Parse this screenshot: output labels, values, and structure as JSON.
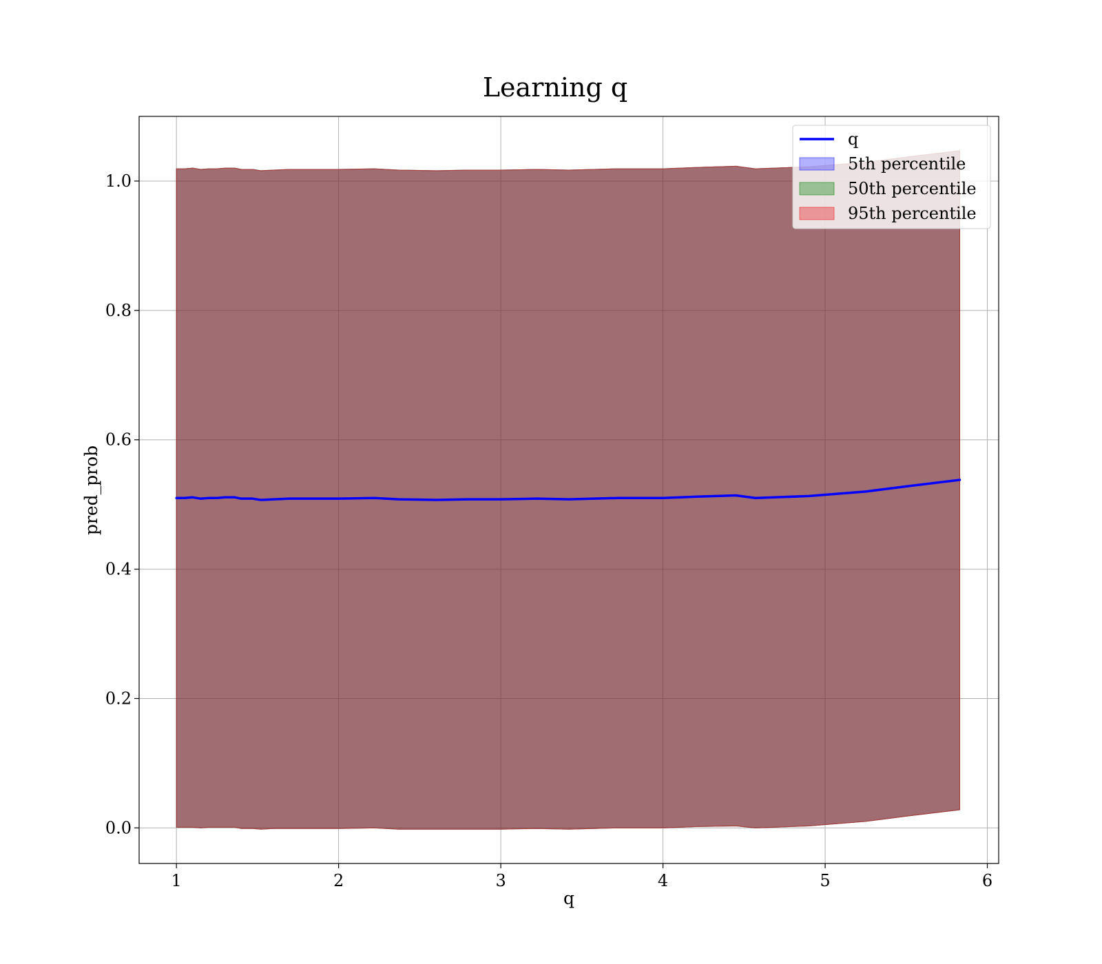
{
  "chart_data": {
    "type": "area",
    "title": "Learning q",
    "xlabel": "q",
    "ylabel": "pred_prob",
    "xlim": [
      0.77,
      6.07
    ],
    "ylim": [
      -0.055,
      1.1
    ],
    "xticks": [
      1,
      2,
      3,
      4,
      5,
      6
    ],
    "yticks": [
      0.0,
      0.2,
      0.4,
      0.6,
      0.8,
      1.0
    ],
    "xtick_labels": [
      "1",
      "2",
      "3",
      "4",
      "5",
      "6"
    ],
    "ytick_labels": [
      "0.0",
      "0.2",
      "0.4",
      "0.6",
      "0.8",
      "1.0"
    ],
    "grid": true,
    "legend_position": "top-right",
    "x": [
      1.0,
      1.05,
      1.1,
      1.15,
      1.2,
      1.25,
      1.3,
      1.36,
      1.4,
      1.47,
      1.52,
      1.6,
      1.7,
      1.8,
      1.9,
      2.0,
      2.22,
      2.37,
      2.6,
      2.8,
      3.0,
      3.22,
      3.42,
      3.72,
      4.0,
      4.2,
      4.45,
      4.57,
      4.9,
      5.25,
      5.5,
      5.83
    ],
    "series": [
      {
        "name": "q",
        "kind": "line",
        "color": "#0000ff",
        "values": [
          0.51,
          0.51,
          0.511,
          0.509,
          0.51,
          0.51,
          0.511,
          0.511,
          0.509,
          0.509,
          0.507,
          0.508,
          0.509,
          0.509,
          0.509,
          0.509,
          0.51,
          0.508,
          0.507,
          0.508,
          0.508,
          0.509,
          0.508,
          0.51,
          0.51,
          0.512,
          0.514,
          0.51,
          0.513,
          0.52,
          0.528,
          0.538
        ]
      },
      {
        "name": "5th percentile",
        "kind": "band",
        "color": "#0000ff",
        "opacity": 0.3,
        "lower": [
          0.001,
          0.001,
          0.001,
          0.0,
          0.001,
          0.001,
          0.001,
          0.001,
          -0.001,
          -0.001,
          -0.002,
          -0.001,
          -0.001,
          -0.001,
          -0.001,
          -0.001,
          0.0,
          -0.002,
          -0.002,
          -0.002,
          -0.002,
          -0.001,
          -0.002,
          0.0,
          0.0,
          0.002,
          0.003,
          0.0,
          0.003,
          0.01,
          0.018,
          0.028
        ],
        "upper": [
          1.019,
          1.019,
          1.02,
          1.018,
          1.019,
          1.019,
          1.02,
          1.02,
          1.018,
          1.018,
          1.016,
          1.017,
          1.018,
          1.018,
          1.018,
          1.018,
          1.019,
          1.017,
          1.016,
          1.017,
          1.017,
          1.018,
          1.017,
          1.019,
          1.019,
          1.021,
          1.023,
          1.019,
          1.022,
          1.029,
          1.037,
          1.047
        ]
      },
      {
        "name": "50th percentile",
        "kind": "band",
        "color": "#008000",
        "opacity": 0.35,
        "lower": [
          0.001,
          0.001,
          0.001,
          0.0,
          0.001,
          0.001,
          0.001,
          0.001,
          -0.001,
          -0.001,
          -0.002,
          -0.001,
          -0.001,
          -0.001,
          -0.001,
          -0.001,
          0.0,
          -0.002,
          -0.002,
          -0.002,
          -0.002,
          -0.001,
          -0.002,
          0.0,
          0.0,
          0.002,
          0.003,
          0.0,
          0.003,
          0.01,
          0.018,
          0.028
        ],
        "upper": [
          1.019,
          1.019,
          1.02,
          1.018,
          1.019,
          1.019,
          1.02,
          1.02,
          1.018,
          1.018,
          1.016,
          1.017,
          1.018,
          1.018,
          1.018,
          1.018,
          1.019,
          1.017,
          1.016,
          1.017,
          1.017,
          1.018,
          1.017,
          1.019,
          1.019,
          1.021,
          1.023,
          1.019,
          1.022,
          1.029,
          1.037,
          1.047
        ]
      },
      {
        "name": "95th percentile",
        "kind": "band",
        "color": "#e8191c",
        "opacity": 0.38,
        "lower": [
          0.001,
          0.001,
          0.001,
          0.0,
          0.001,
          0.001,
          0.001,
          0.001,
          -0.001,
          -0.001,
          -0.002,
          -0.001,
          -0.001,
          -0.001,
          -0.001,
          -0.001,
          0.0,
          -0.002,
          -0.002,
          -0.002,
          -0.002,
          -0.001,
          -0.002,
          0.0,
          0.0,
          0.002,
          0.003,
          0.0,
          0.003,
          0.01,
          0.018,
          0.028
        ],
        "upper": [
          1.019,
          1.019,
          1.02,
          1.018,
          1.019,
          1.019,
          1.02,
          1.02,
          1.018,
          1.018,
          1.016,
          1.017,
          1.018,
          1.018,
          1.018,
          1.018,
          1.019,
          1.017,
          1.016,
          1.017,
          1.017,
          1.018,
          1.017,
          1.019,
          1.019,
          1.021,
          1.023,
          1.019,
          1.022,
          1.029,
          1.037,
          1.047
        ]
      }
    ],
    "colors": {
      "grid": "#b0b0b0",
      "axes": "#000000"
    }
  }
}
